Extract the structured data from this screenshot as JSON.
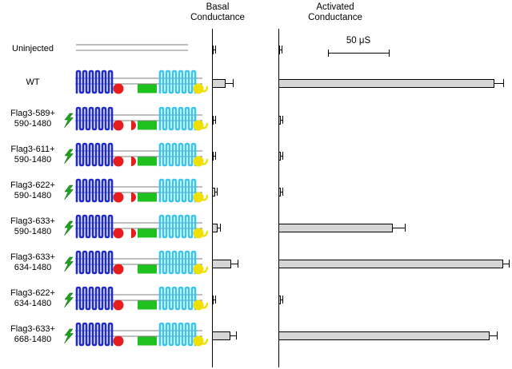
{
  "figure": {
    "panel_titles": {
      "basal": [
        "Basal",
        "Conductance"
      ],
      "activated": [
        "Activated",
        "Conductance"
      ]
    },
    "scale_bar": {
      "label": "50 μS",
      "value_us": 50
    }
  },
  "colors": {
    "tmd1": "#1e2ad2",
    "tmd2": "#38c6f0",
    "nbd1": "#e51d1d",
    "r_domain": "#1fc11f",
    "nbd2": "#f0e000",
    "flag_tag": "#1da31d",
    "bar_fill": "#d6d6d6",
    "bar_border": "#000000",
    "membrane_line": "#555555"
  },
  "rows": [
    {
      "label_lines": [
        "Uninjected"
      ],
      "schematic": {
        "present": false
      }
    },
    {
      "label_lines": [
        "WT"
      ],
      "schematic": {
        "present": true,
        "flag_tag": false,
        "tmd1": true,
        "nbd1": true,
        "nbd1_fragment2": false,
        "r_domain": true,
        "tmd2": true,
        "nbd2": true
      }
    },
    {
      "label_lines": [
        "Flag3-589+",
        "590-1480"
      ],
      "schematic": {
        "present": true,
        "flag_tag": true,
        "tmd1": true,
        "nbd1": true,
        "nbd1_fragment2": true,
        "r_domain": true,
        "tmd2": true,
        "nbd2": true
      }
    },
    {
      "label_lines": [
        "Flag3-611+",
        "590-1480"
      ],
      "schematic": {
        "present": true,
        "flag_tag": true,
        "tmd1": true,
        "nbd1": true,
        "nbd1_fragment2": true,
        "r_domain": true,
        "tmd2": true,
        "nbd2": true
      }
    },
    {
      "label_lines": [
        "Flag3-622+",
        "590-1480"
      ],
      "schematic": {
        "present": true,
        "flag_tag": true,
        "tmd1": true,
        "nbd1": true,
        "nbd1_fragment2": true,
        "r_domain": true,
        "tmd2": true,
        "nbd2": true
      }
    },
    {
      "label_lines": [
        "Flag3-633+",
        "590-1480"
      ],
      "schematic": {
        "present": true,
        "flag_tag": true,
        "tmd1": true,
        "nbd1": true,
        "nbd1_fragment2": true,
        "r_domain": true,
        "tmd2": true,
        "nbd2": true
      }
    },
    {
      "label_lines": [
        "Flag3-633+",
        "634-1480"
      ],
      "schematic": {
        "present": true,
        "flag_tag": true,
        "tmd1": true,
        "nbd1": true,
        "nbd1_fragment2": false,
        "r_domain": true,
        "tmd2": true,
        "nbd2": true
      }
    },
    {
      "label_lines": [
        "Flag3-622+",
        "634-1480"
      ],
      "schematic": {
        "present": true,
        "flag_tag": true,
        "tmd1": true,
        "nbd1": true,
        "nbd1_fragment2": false,
        "r_domain": true,
        "tmd2": true,
        "nbd2": true
      }
    },
    {
      "label_lines": [
        "Flag3-633+",
        "668-1480"
      ],
      "schematic": {
        "present": true,
        "flag_tag": true,
        "tmd1": true,
        "nbd1": true,
        "nbd1_fragment2": false,
        "r_domain": true,
        "tmd2": true,
        "nbd2": true
      }
    }
  ],
  "chart_data": [
    {
      "type": "bar",
      "title": "Basal Conductance",
      "unit": "μS",
      "orientation": "horizontal",
      "categories": [
        "Uninjected",
        "WT",
        "Flag3-589 + 590-1480",
        "Flag3-611 + 590-1480",
        "Flag3-622 + 590-1480",
        "Flag3-633 + 590-1480",
        "Flag3-633 + 634-1480",
        "Flag3-622 + 634-1480",
        "Flag3-633 + 668-1480"
      ],
      "values": [
        1.5,
        11,
        1.5,
        1.5,
        2.5,
        4.5,
        16,
        1.5,
        15
      ],
      "errors": [
        1,
        6,
        1,
        1,
        1.5,
        2,
        5,
        1,
        5
      ],
      "xlim": [
        0,
        25
      ],
      "grid": false,
      "legend": false
    },
    {
      "type": "bar",
      "title": "Activated Conductance",
      "unit": "μS",
      "orientation": "horizontal",
      "categories": [
        "Uninjected",
        "WT",
        "Flag3-589 + 590-1480",
        "Flag3-611 + 590-1480",
        "Flag3-622 + 590-1480",
        "Flag3-633 + 590-1480",
        "Flag3-633 + 634-1480",
        "Flag3-622 + 634-1480",
        "Flag3-633 + 668-1480"
      ],
      "values": [
        1.5,
        180,
        2,
        2,
        2,
        95,
        187,
        2,
        176
      ],
      "errors": [
        1,
        7,
        1,
        1,
        1,
        10,
        5,
        1,
        6
      ],
      "xlim": [
        0,
        200
      ],
      "grid": false,
      "legend": false,
      "scale_bar": {
        "label": "50 μS",
        "value_us": 50
      }
    }
  ]
}
